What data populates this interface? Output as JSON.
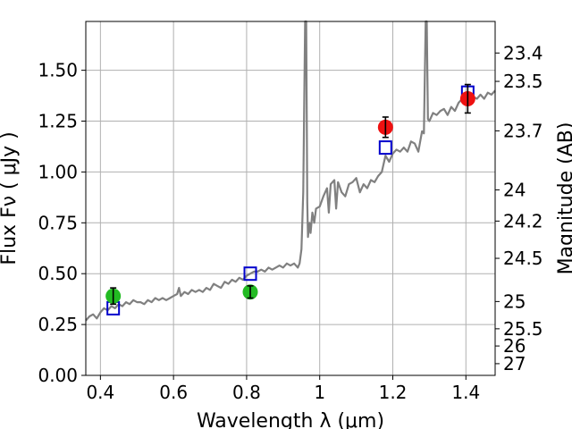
{
  "chart_data": {
    "type": "line",
    "xlabel": "Wavelength  λ (μm)",
    "ylabel": "Flux  Fν  ( μJy )",
    "y2label": "Magnitude (AB)",
    "xlim": [
      0.36,
      1.48
    ],
    "ylim": [
      0.0,
      1.74
    ],
    "grid": true,
    "x_ticks": [
      "0.4",
      "0.6",
      "0.8",
      "1",
      "1.2",
      "1.4"
    ],
    "x_tick_values": [
      0.4,
      0.6,
      0.8,
      1.0,
      1.2,
      1.4
    ],
    "y_ticks": [
      "0.00",
      "0.25",
      "0.50",
      "0.75",
      "1.00",
      "1.25",
      "1.50"
    ],
    "y_tick_values": [
      0.0,
      0.25,
      0.5,
      0.75,
      1.0,
      1.25,
      1.5
    ],
    "y2_ticks": [
      {
        "label": "23.4",
        "mag": 23.4
      },
      {
        "label": "23.5",
        "mag": 23.5
      },
      {
        "label": "23.7",
        "mag": 23.7
      },
      {
        "label": "24",
        "mag": 24.0
      },
      {
        "label": "24.2",
        "mag": 24.2
      },
      {
        "label": "24.5",
        "mag": 24.5
      },
      {
        "label": "25",
        "mag": 25.0
      },
      {
        "label": "25.5",
        "mag": 25.5
      },
      {
        "label": "26",
        "mag": 26.0
      },
      {
        "label": "27",
        "mag": 27.0
      }
    ],
    "colors": {
      "spectrum": "#808080",
      "model_points": "#0000cc",
      "green_points": "#22bb22",
      "red_points": "#ee1111",
      "grid": "#b0b0b0",
      "errorbar": "#000000"
    },
    "spectrum": {
      "x": [
        0.36,
        0.37,
        0.38,
        0.39,
        0.4,
        0.41,
        0.42,
        0.43,
        0.44,
        0.45,
        0.46,
        0.47,
        0.48,
        0.49,
        0.5,
        0.51,
        0.52,
        0.53,
        0.54,
        0.55,
        0.56,
        0.57,
        0.58,
        0.59,
        0.6,
        0.61,
        0.615,
        0.62,
        0.63,
        0.64,
        0.65,
        0.66,
        0.67,
        0.68,
        0.69,
        0.7,
        0.71,
        0.72,
        0.73,
        0.74,
        0.75,
        0.76,
        0.77,
        0.78,
        0.79,
        0.8,
        0.81,
        0.82,
        0.83,
        0.84,
        0.85,
        0.86,
        0.87,
        0.88,
        0.89,
        0.9,
        0.91,
        0.92,
        0.93,
        0.94,
        0.945,
        0.95,
        0.955,
        0.96,
        0.963,
        0.966,
        0.968,
        0.97,
        0.972,
        0.975,
        0.98,
        0.985,
        0.99,
        1.0,
        1.01,
        1.02,
        1.025,
        1.03,
        1.04,
        1.045,
        1.05,
        1.06,
        1.07,
        1.08,
        1.09,
        1.1,
        1.11,
        1.12,
        1.13,
        1.14,
        1.15,
        1.16,
        1.17,
        1.18,
        1.19,
        1.2,
        1.21,
        1.22,
        1.23,
        1.24,
        1.25,
        1.26,
        1.27,
        1.28,
        1.285,
        1.29,
        1.293,
        1.296,
        1.3,
        1.31,
        1.32,
        1.33,
        1.34,
        1.35,
        1.36,
        1.37,
        1.38,
        1.39,
        1.4,
        1.41,
        1.42,
        1.43,
        1.44,
        1.45,
        1.46,
        1.47,
        1.48
      ],
      "y": [
        0.27,
        0.29,
        0.3,
        0.28,
        0.31,
        0.33,
        0.32,
        0.34,
        0.33,
        0.35,
        0.34,
        0.36,
        0.35,
        0.37,
        0.36,
        0.36,
        0.35,
        0.37,
        0.36,
        0.38,
        0.37,
        0.38,
        0.37,
        0.38,
        0.39,
        0.4,
        0.43,
        0.39,
        0.41,
        0.4,
        0.42,
        0.41,
        0.42,
        0.41,
        0.43,
        0.42,
        0.45,
        0.44,
        0.43,
        0.46,
        0.45,
        0.47,
        0.46,
        0.48,
        0.47,
        0.49,
        0.5,
        0.51,
        0.51,
        0.52,
        0.51,
        0.53,
        0.52,
        0.53,
        0.54,
        0.53,
        0.55,
        0.54,
        0.55,
        0.53,
        0.55,
        0.62,
        0.9,
        1.74,
        1.74,
        0.85,
        0.68,
        0.72,
        0.75,
        0.7,
        0.8,
        0.75,
        0.82,
        0.83,
        0.88,
        0.92,
        0.8,
        0.94,
        0.96,
        0.82,
        0.95,
        0.9,
        0.88,
        0.94,
        0.95,
        0.97,
        0.9,
        0.94,
        0.92,
        0.96,
        0.95,
        0.98,
        1.0,
        1.08,
        1.05,
        1.09,
        1.11,
        1.1,
        1.12,
        1.1,
        1.15,
        1.14,
        1.1,
        1.2,
        1.19,
        1.74,
        1.74,
        1.26,
        1.25,
        1.29,
        1.28,
        1.3,
        1.31,
        1.28,
        1.32,
        1.3,
        1.34,
        1.36,
        1.35,
        1.34,
        1.37,
        1.36,
        1.38,
        1.36,
        1.39,
        1.38,
        1.4
      ]
    },
    "model_points": {
      "x": [
        0.435,
        0.81,
        1.18,
        1.405
      ],
      "y": [
        0.33,
        0.5,
        1.12,
        1.39
      ]
    },
    "observed_green": {
      "x": [
        0.435,
        0.81
      ],
      "y": [
        0.39,
        0.41
      ],
      "err": [
        0.04,
        0.03
      ]
    },
    "observed_red": {
      "x": [
        1.18,
        1.405
      ],
      "y": [
        1.22,
        1.36
      ],
      "err": [
        0.05,
        0.07
      ]
    }
  }
}
